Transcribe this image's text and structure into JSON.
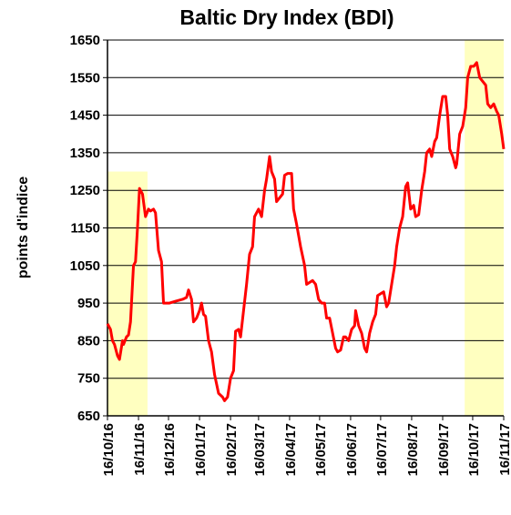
{
  "chart_data": {
    "type": "line",
    "title": "Baltic Dry Index (BDI)",
    "y_label": "points d'indice",
    "grid": true,
    "xlim": [
      "2016-10-16",
      "2017-11-16"
    ],
    "ylim": [
      650,
      1650
    ],
    "yticks": [
      650,
      750,
      850,
      950,
      1050,
      1150,
      1250,
      1350,
      1450,
      1550,
      1650
    ],
    "xticks": [
      {
        "value": "2016-10-16",
        "label": "16/10/16"
      },
      {
        "value": "2016-11-16",
        "label": "16/11/16"
      },
      {
        "value": "2016-12-16",
        "label": "16/12/16"
      },
      {
        "value": "2017-01-16",
        "label": "16/01/17"
      },
      {
        "value": "2017-02-16",
        "label": "16/02/17"
      },
      {
        "value": "2017-03-16",
        "label": "16/03/17"
      },
      {
        "value": "2017-04-16",
        "label": "16/04/17"
      },
      {
        "value": "2017-05-16",
        "label": "16/05/17"
      },
      {
        "value": "2017-06-16",
        "label": "16/06/17"
      },
      {
        "value": "2017-07-16",
        "label": "16/07/17"
      },
      {
        "value": "2017-08-16",
        "label": "16/08/17"
      },
      {
        "value": "2017-09-16",
        "label": "16/09/17"
      },
      {
        "value": "2017-10-16",
        "label": "16/10/17"
      },
      {
        "value": "2017-11-16",
        "label": "16/11/17"
      }
    ],
    "highlights": [
      {
        "x": [
          "2016-10-16",
          "2016-11-25"
        ],
        "top": 1300,
        "color": "#ffffc0"
      },
      {
        "x": [
          "2017-10-08",
          "2017-11-16"
        ],
        "top": 1650,
        "color": "#ffffc0"
      }
    ],
    "x": [
      "2016-10-16",
      "2016-10-19",
      "2016-10-21",
      "2016-10-23",
      "2016-10-26",
      "2016-10-28",
      "2016-10-31",
      "2016-11-01",
      "2016-11-04",
      "2016-11-06",
      "2016-11-08",
      "2016-11-10",
      "2016-11-11",
      "2016-11-13",
      "2016-11-15",
      "2016-11-17",
      "2016-11-20",
      "2016-11-21",
      "2016-11-23",
      "2016-11-26",
      "2016-11-28",
      "2016-12-01",
      "2016-12-03",
      "2016-12-06",
      "2016-12-09",
      "2016-12-11",
      "2016-12-17",
      "2016-12-23",
      "2016-12-30",
      "2017-01-03",
      "2017-01-05",
      "2017-01-08",
      "2017-01-10",
      "2017-01-13",
      "2017-01-16",
      "2017-01-18",
      "2017-01-20",
      "2017-01-22",
      "2017-01-25",
      "2017-01-28",
      "2017-01-31",
      "2017-02-04",
      "2017-02-08",
      "2017-02-10",
      "2017-02-13",
      "2017-02-16",
      "2017-02-19",
      "2017-02-21",
      "2017-02-24",
      "2017-02-26",
      "2017-03-01",
      "2017-03-04",
      "2017-03-07",
      "2017-03-10",
      "2017-03-12",
      "2017-03-16",
      "2017-03-19",
      "2017-03-22",
      "2017-03-24",
      "2017-03-27",
      "2017-03-29",
      "2017-04-01",
      "2017-04-03",
      "2017-04-06",
      "2017-04-09",
      "2017-04-11",
      "2017-04-14",
      "2017-04-18",
      "2017-04-20",
      "2017-04-23",
      "2017-04-27",
      "2017-05-01",
      "2017-05-03",
      "2017-05-06",
      "2017-05-09",
      "2017-05-12",
      "2017-05-15",
      "2017-05-18",
      "2017-05-21",
      "2017-05-23",
      "2017-05-26",
      "2017-05-29",
      "2017-06-01",
      "2017-06-03",
      "2017-06-06",
      "2017-06-09",
      "2017-06-11",
      "2017-06-14",
      "2017-06-17",
      "2017-06-20",
      "2017-06-21",
      "2017-06-24",
      "2017-06-27",
      "2017-06-30",
      "2017-07-02",
      "2017-07-05",
      "2017-07-08",
      "2017-07-11",
      "2017-07-13",
      "2017-07-16",
      "2017-07-19",
      "2017-07-22",
      "2017-07-24",
      "2017-07-27",
      "2017-07-30",
      "2017-08-01",
      "2017-08-04",
      "2017-08-07",
      "2017-08-10",
      "2017-08-12",
      "2017-08-15",
      "2017-08-18",
      "2017-08-20",
      "2017-08-23",
      "2017-08-26",
      "2017-08-29",
      "2017-08-31",
      "2017-09-03",
      "2017-09-05",
      "2017-09-08",
      "2017-09-10",
      "2017-09-13",
      "2017-09-16",
      "2017-09-19",
      "2017-09-21",
      "2017-09-23",
      "2017-09-26",
      "2017-09-29",
      "2017-09-30",
      "2017-10-03",
      "2017-10-06",
      "2017-10-09",
      "2017-10-11",
      "2017-10-14",
      "2017-10-17",
      "2017-10-20",
      "2017-10-23",
      "2017-10-26",
      "2017-10-29",
      "2017-10-31",
      "2017-11-03",
      "2017-11-06",
      "2017-11-09",
      "2017-11-11",
      "2017-11-14",
      "2017-11-16"
    ],
    "series": [
      {
        "name": "BDI",
        "color": "#ff0000",
        "values": [
          895,
          880,
          850,
          840,
          810,
          800,
          850,
          840,
          860,
          865,
          900,
          1000,
          1050,
          1060,
          1150,
          1255,
          1240,
          1220,
          1180,
          1200,
          1195,
          1200,
          1190,
          1090,
          1060,
          950,
          950,
          955,
          960,
          965,
          985,
          960,
          900,
          910,
          930,
          950,
          920,
          915,
          850,
          820,
          760,
          710,
          700,
          690,
          700,
          750,
          770,
          875,
          880,
          860,
          930,
          1000,
          1080,
          1100,
          1180,
          1200,
          1180,
          1250,
          1280,
          1340,
          1300,
          1280,
          1220,
          1230,
          1240,
          1290,
          1295,
          1295,
          1200,
          1160,
          1100,
          1050,
          1000,
          1005,
          1010,
          1000,
          960,
          950,
          950,
          910,
          910,
          870,
          830,
          820,
          825,
          860,
          860,
          850,
          880,
          890,
          930,
          890,
          870,
          830,
          820,
          870,
          900,
          920,
          970,
          975,
          980,
          940,
          950,
          1000,
          1050,
          1100,
          1150,
          1180,
          1260,
          1270,
          1200,
          1210,
          1180,
          1185,
          1250,
          1300,
          1350,
          1360,
          1340,
          1380,
          1390,
          1450,
          1500,
          1500,
          1450,
          1360,
          1340,
          1310,
          1320,
          1400,
          1420,
          1470,
          1550,
          1580,
          1580,
          1590,
          1550,
          1540,
          1530,
          1480,
          1470,
          1480,
          1460,
          1450,
          1400,
          1360
        ]
      }
    ]
  }
}
